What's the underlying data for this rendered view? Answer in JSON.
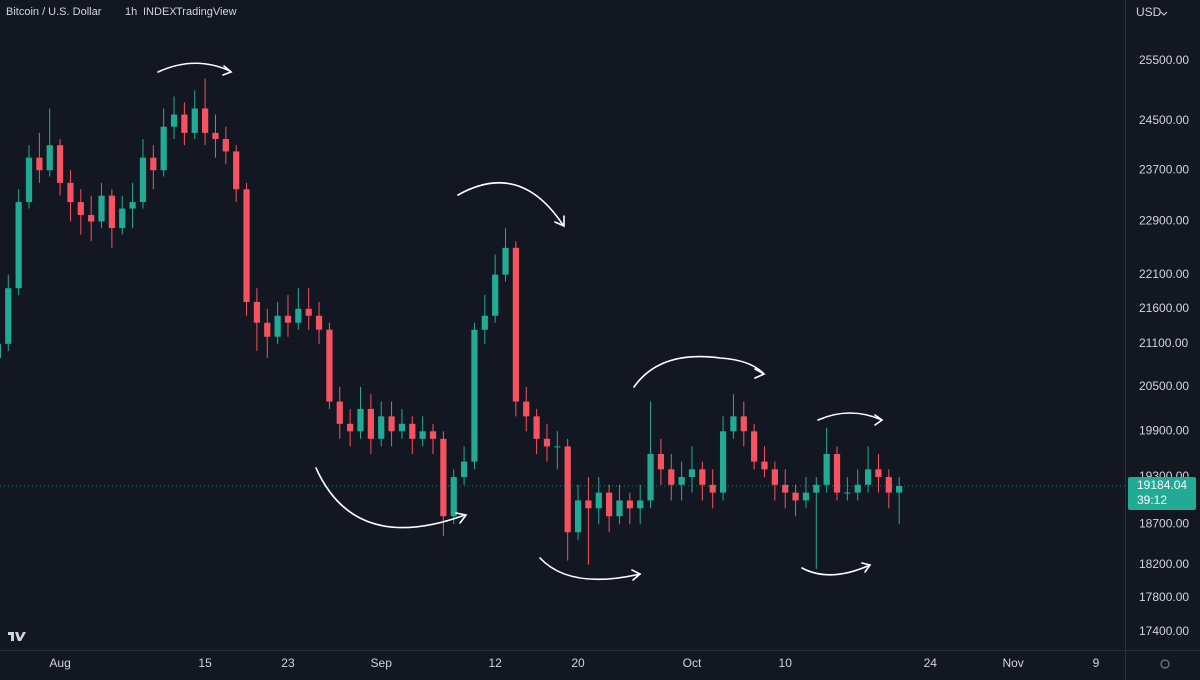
{
  "chart_data": {
    "type": "candlestick",
    "title": "Bitcoin / U.S. Dollar",
    "interval": "1h",
    "exchange": "INDEX",
    "source": "TradingView",
    "currency": "USD",
    "countdown": "39:12",
    "log_scale": true,
    "grid": false,
    "up_color": "#22ab94",
    "down_color": "#f7525f",
    "x": [
      -6,
      -5,
      -4,
      -3,
      -2,
      -1,
      0,
      1,
      2,
      3,
      4,
      5,
      6,
      7,
      8,
      9,
      10,
      11,
      12,
      13,
      14,
      15,
      16,
      17,
      18,
      19,
      20,
      21,
      22,
      23,
      24,
      25,
      26,
      27,
      28,
      29,
      30,
      31,
      32,
      33,
      34,
      35,
      36,
      37,
      38,
      39,
      40,
      41,
      42,
      43,
      44,
      45,
      46,
      47,
      48,
      49,
      50,
      51,
      52,
      53,
      54,
      55,
      56,
      57,
      58,
      59,
      60,
      61,
      62,
      63,
      64,
      65,
      66,
      67,
      68,
      69,
      70,
      71,
      72,
      73,
      74,
      75,
      76,
      77,
      78,
      79,
      80,
      81
    ],
    "open": [
      20900,
      21100,
      21900,
      23200,
      23900,
      23700,
      24100,
      23500,
      23200,
      23000,
      22900,
      23300,
      22800,
      23100,
      23200,
      23900,
      23700,
      24400,
      24600,
      24300,
      24700,
      24300,
      24200,
      24000,
      23400,
      21700,
      21400,
      21200,
      21500,
      21400,
      21600,
      21500,
      21300,
      20300,
      20000,
      19900,
      20200,
      19800,
      20100,
      19900,
      20000,
      19800,
      19900,
      19800,
      18800,
      19300,
      19500,
      21300,
      21500,
      22100,
      22500,
      20300,
      20100,
      19800,
      19700,
      19700,
      18600,
      19000,
      18900,
      19100,
      18800,
      19000,
      18900,
      19000,
      19600,
      19400,
      19200,
      19300,
      19400,
      19200,
      19100,
      19900,
      20100,
      19900,
      19500,
      19400,
      19200,
      19100,
      19000,
      19100,
      19200,
      19600,
      19100,
      19100,
      19200,
      19400,
      19300,
      19100
    ],
    "high": [
      21300,
      22100,
      23400,
      24100,
      24300,
      24700,
      24200,
      23700,
      23400,
      23300,
      23500,
      23400,
      23300,
      23500,
      24200,
      24100,
      24700,
      24900,
      24800,
      25000,
      25200,
      24600,
      24400,
      24100,
      23500,
      21900,
      21600,
      21700,
      21800,
      21900,
      21900,
      21700,
      21400,
      20500,
      20200,
      20500,
      20400,
      20300,
      20300,
      20200,
      20100,
      20100,
      20000,
      19900,
      19400,
      19700,
      21400,
      21800,
      22400,
      22800,
      22600,
      20500,
      20200,
      20000,
      19900,
      19800,
      19200,
      19300,
      19300,
      19200,
      19200,
      19100,
      19200,
      20300,
      19800,
      19600,
      19500,
      19700,
      19500,
      19400,
      20100,
      20400,
      20300,
      20000,
      19700,
      19500,
      19400,
      19200,
      19300,
      19300,
      19950,
      19700,
      19300,
      19400,
      19700,
      19600,
      19400,
      19300
    ],
    "low": [
      20750,
      21000,
      21800,
      23100,
      23500,
      23600,
      23300,
      22900,
      22700,
      22600,
      22800,
      22500,
      22700,
      22800,
      23100,
      23400,
      23600,
      24200,
      24100,
      24200,
      24100,
      23900,
      23800,
      23200,
      21500,
      21000,
      20900,
      21100,
      21200,
      21300,
      21300,
      21100,
      20200,
      19800,
      19700,
      19800,
      19600,
      19700,
      19700,
      19800,
      19600,
      19700,
      19600,
      18550,
      18700,
      19200,
      19400,
      21100,
      21400,
      22000,
      20100,
      19900,
      19600,
      19500,
      19400,
      18250,
      18500,
      18200,
      18700,
      18600,
      18700,
      18700,
      18700,
      18900,
      19200,
      19000,
      19000,
      19100,
      19000,
      18900,
      19000,
      19800,
      19700,
      19400,
      19300,
      19000,
      18900,
      18800,
      18900,
      18150,
      19100,
      19000,
      19000,
      19000,
      19100,
      19100,
      18900,
      18700
    ],
    "close": [
      21100,
      21900,
      23200,
      23900,
      23700,
      24100,
      23500,
      23200,
      23000,
      22900,
      23300,
      22800,
      23100,
      23200,
      23900,
      23700,
      24400,
      24600,
      24300,
      24700,
      24300,
      24200,
      24000,
      23400,
      21700,
      21400,
      21200,
      21500,
      21400,
      21600,
      21500,
      21300,
      20300,
      20000,
      19900,
      20200,
      19800,
      20100,
      19900,
      20000,
      19800,
      19900,
      19800,
      18800,
      19300,
      19500,
      21300,
      21500,
      22100,
      22500,
      20300,
      20100,
      19800,
      19700,
      19700,
      18600,
      19000,
      18900,
      19100,
      18800,
      19000,
      18900,
      19000,
      19600,
      19400,
      19200,
      19300,
      19400,
      19200,
      19100,
      19900,
      20100,
      19900,
      19500,
      19400,
      19200,
      19100,
      19000,
      19100,
      19200,
      19600,
      19100,
      19100,
      19200,
      19400,
      19300,
      19100,
      19184.04
    ],
    "xlim": [
      -5.8,
      102.8
    ],
    "xticks": [
      {
        "value": 0,
        "label": "Aug"
      },
      {
        "value": 14,
        "label": "15"
      },
      {
        "value": 22,
        "label": "23"
      },
      {
        "value": 31,
        "label": "Sep"
      },
      {
        "value": 42,
        "label": "12"
      },
      {
        "value": 50,
        "label": "20"
      },
      {
        "value": 61,
        "label": "Oct"
      },
      {
        "value": 70,
        "label": "10"
      },
      {
        "value": 84,
        "label": "24"
      },
      {
        "value": 92,
        "label": "Nov"
      },
      {
        "value": 100,
        "label": "9"
      }
    ],
    "ylim": [
      17190,
      26560
    ],
    "yticks": [
      {
        "value": 25500,
        "label": "25500.00"
      },
      {
        "value": 24500,
        "label": "24500.00"
      },
      {
        "value": 23700,
        "label": "23700.00"
      },
      {
        "value": 22900,
        "label": "22900.00"
      },
      {
        "value": 22100,
        "label": "22100.00"
      },
      {
        "value": 21600,
        "label": "21600.00"
      },
      {
        "value": 21100,
        "label": "21100.00"
      },
      {
        "value": 20500,
        "label": "20500.00"
      },
      {
        "value": 19900,
        "label": "19900.00"
      },
      {
        "value": 19300,
        "label": "19300.00"
      },
      {
        "value": 18700,
        "label": "18700.00"
      },
      {
        "value": 18200,
        "label": "18200.00"
      },
      {
        "value": 17800,
        "label": "17800.00"
      },
      {
        "value": 17400,
        "label": "17400.00"
      }
    ]
  }
}
